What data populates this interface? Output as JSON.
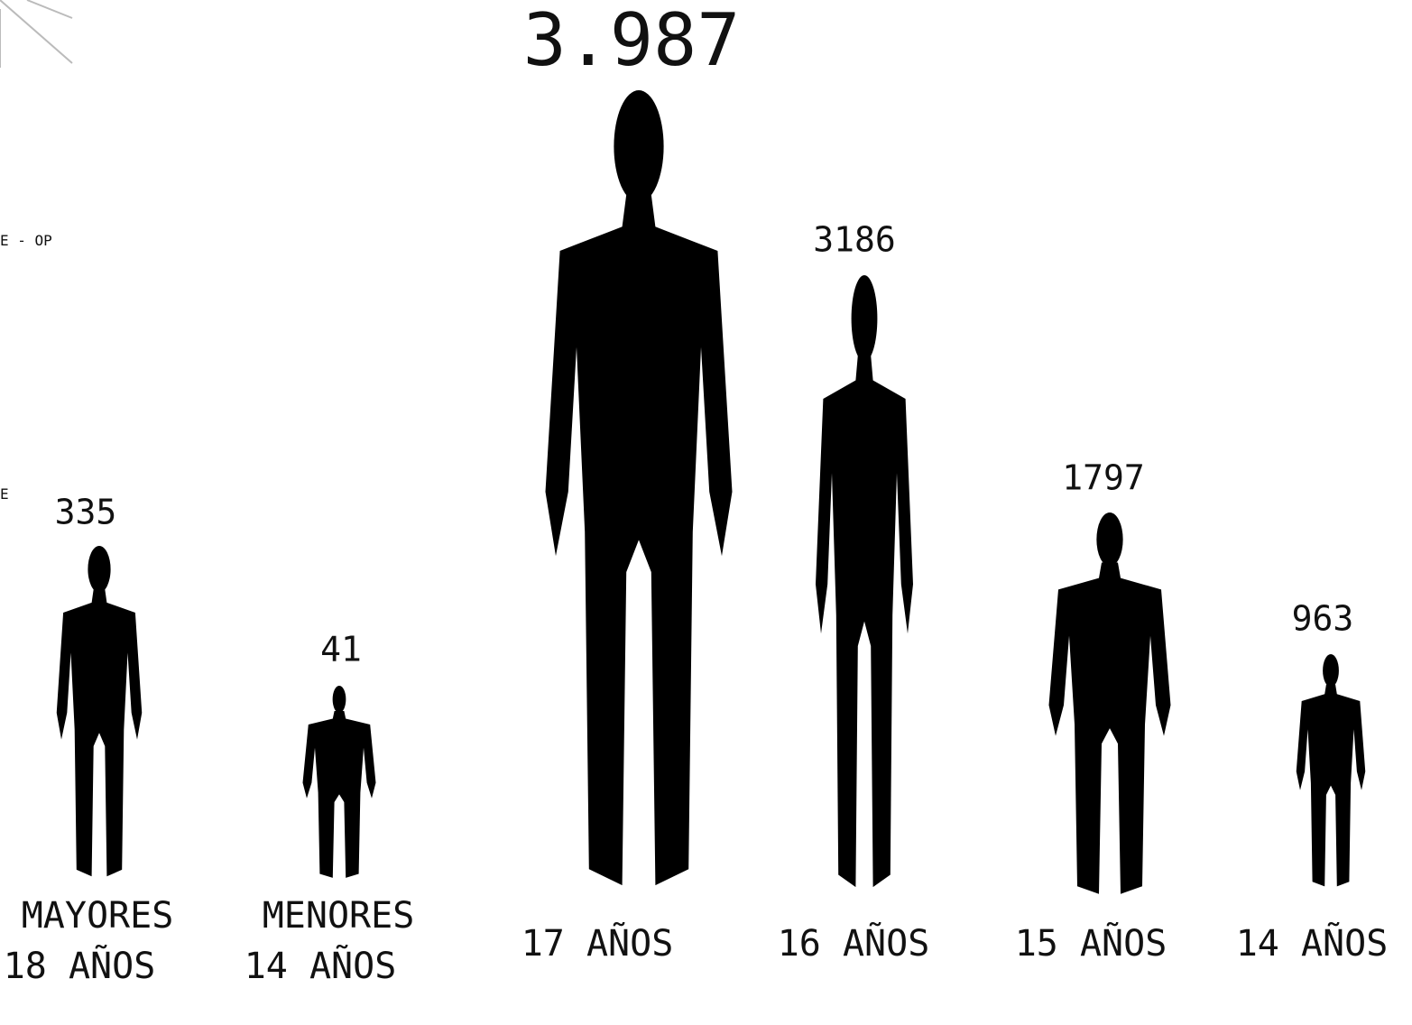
{
  "logo": {
    "fragments": [
      "E - OP",
      "E"
    ]
  },
  "figures": [
    {
      "value": "335",
      "label": [
        "MAYORES",
        "18 AÑOS"
      ]
    },
    {
      "value": "41",
      "label": [
        "MENORES",
        "14 AÑOS"
      ]
    },
    {
      "value": "3.987",
      "label": [
        "17 AÑOS"
      ]
    },
    {
      "value": "3186",
      "label": [
        "16 AÑOS"
      ]
    },
    {
      "value": "1797",
      "label": [
        "15 AÑOS"
      ]
    },
    {
      "value": "963",
      "label": [
        "14 AÑOS"
      ]
    }
  ]
}
